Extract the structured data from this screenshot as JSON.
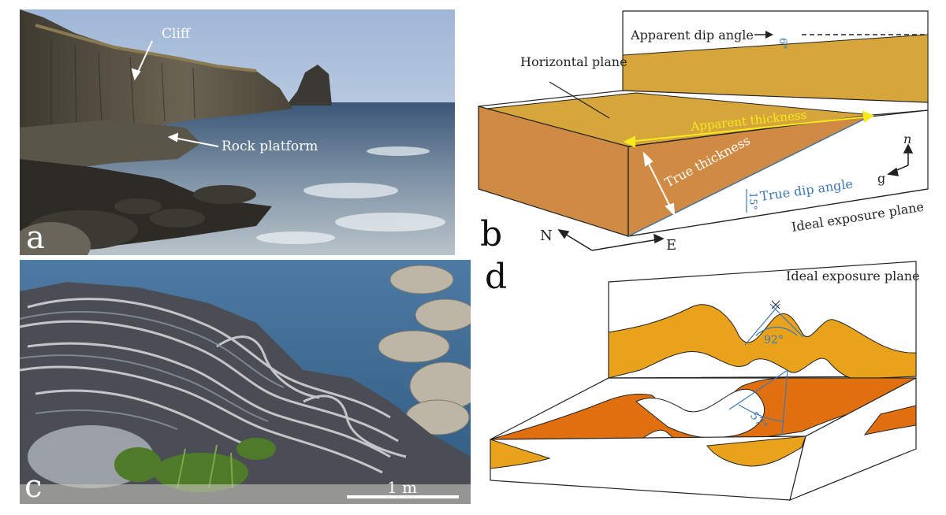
{
  "panels": {
    "a": {
      "letter": "a",
      "labels": {
        "cliff": "Cliff",
        "rock_platform": "Rock platform"
      }
    },
    "b": {
      "letter": "b",
      "labels": {
        "apparent_dip_angle": "Apparent dip angle",
        "apparent_dip_value": "6°",
        "horizontal_plane": "Horizontal plane",
        "apparent_thickness": "Apparent thickness",
        "true_thickness": "True thickness",
        "true_dip_angle": "True dip angle",
        "true_dip_value": "15°",
        "ideal_exposure_plane": "Ideal exposure plane",
        "axis_n": "n",
        "axis_g": "g",
        "compass_n": "N",
        "compass_e": "E"
      }
    },
    "c": {
      "letter": "c",
      "labels": {
        "scale_bar": "1 m"
      }
    },
    "d": {
      "letter": "d",
      "labels": {
        "ideal_exposure_plane": "Ideal exposure plane",
        "angle_upper": "92°",
        "angle_lower": "57°"
      }
    }
  },
  "colors": {
    "ochre_light": "#d6a63c",
    "ochre_dark": "#cf8a43",
    "orange_fold": "#e8901a",
    "orange_fold_dark": "#e0700f",
    "blue_label": "#3c78b4",
    "yellow_arrow": "#f6ea1c"
  }
}
